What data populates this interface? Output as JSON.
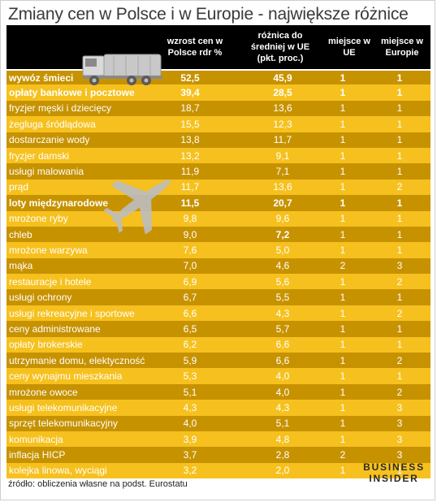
{
  "title": "Zmiany cen w Polsce i w Europie - największe różnice",
  "headers": {
    "growth": [
      "wzrost cen w",
      "Polsce rdr %"
    ],
    "diff": [
      "różnica do",
      "średniej w UE",
      "(pkt. proc.)"
    ],
    "eu": [
      "miejsce w",
      "UE"
    ],
    "europe": [
      "miejsce w",
      "Europie"
    ]
  },
  "rows": [
    {
      "name": "wywóz śmieci",
      "growth": "52,5",
      "diff": "45,9",
      "eu": "1",
      "europe": "1"
    },
    {
      "name": "opłaty bankowe i pocztowe",
      "growth": "39,4",
      "diff": "28,5",
      "eu": "1",
      "europe": "1"
    },
    {
      "name": "fryzjer męski i dziecięcy",
      "growth": "18,7",
      "diff": "13,6",
      "eu": "1",
      "europe": "1"
    },
    {
      "name": "żegluga śródlądowa",
      "growth": "15,5",
      "diff": "12,3",
      "eu": "1",
      "europe": "1"
    },
    {
      "name": "dostarczanie wody",
      "growth": "13,8",
      "diff": "11,7",
      "eu": "1",
      "europe": "1"
    },
    {
      "name": "fryzjer damski",
      "growth": "13,2",
      "diff": "9,1",
      "eu": "1",
      "europe": "1"
    },
    {
      "name": "usługi malowania",
      "growth": "11,9",
      "diff": "7,1",
      "eu": "1",
      "europe": "1"
    },
    {
      "name": "prąd",
      "growth": "11,7",
      "diff": "13,6",
      "eu": "1",
      "europe": "2"
    },
    {
      "name": "loty międzynarodowe",
      "growth": "11,5",
      "diff": "20,7",
      "eu": "1",
      "europe": "1"
    },
    {
      "name": "mrożone ryby",
      "growth": "9,8",
      "diff": "9,6",
      "eu": "1",
      "europe": "1"
    },
    {
      "name": "chleb",
      "growth": "9,0",
      "diff": "7,2",
      "eu": "1",
      "europe": "1"
    },
    {
      "name": "mrożone warzywa",
      "growth": "7,6",
      "diff": "5,0",
      "eu": "1",
      "europe": "1"
    },
    {
      "name": "mąka",
      "growth": "7,0",
      "diff": "4,6",
      "eu": "2",
      "europe": "3"
    },
    {
      "name": "restauracje i hotele",
      "growth": "6,9",
      "diff": "5,6",
      "eu": "1",
      "europe": "2"
    },
    {
      "name": "usługi ochrony",
      "growth": "6,7",
      "diff": "5,5",
      "eu": "1",
      "europe": "1"
    },
    {
      "name": "usługi rekreacyjne i sportowe",
      "growth": "6,6",
      "diff": "4,3",
      "eu": "1",
      "europe": "2"
    },
    {
      "name": "ceny administrowane",
      "growth": "6,5",
      "diff": "5,7",
      "eu": "1",
      "europe": "1"
    },
    {
      "name": "opłaty brokerskie",
      "growth": "6,2",
      "diff": "6,6",
      "eu": "1",
      "europe": "1"
    },
    {
      "name": "utrzymanie domu, elektyczność",
      "growth": "5,9",
      "diff": "6,6",
      "eu": "1",
      "europe": "2"
    },
    {
      "name": "ceny wynajmu mieszkania",
      "growth": "5,3",
      "diff": "4,0",
      "eu": "1",
      "europe": "1"
    },
    {
      "name": "mrożone owoce",
      "growth": "5,1",
      "diff": "4,0",
      "eu": "1",
      "europe": "2"
    },
    {
      "name": "usługi telekomunikacyjne",
      "growth": "4,3",
      "diff": "4,3",
      "eu": "1",
      "europe": "3"
    },
    {
      "name": "sprzęt telekomunikacyjny",
      "growth": "4,0",
      "diff": "5,1",
      "eu": "1",
      "europe": "3"
    },
    {
      "name": "komunikacja",
      "growth": "3,9",
      "diff": "4,8",
      "eu": "1",
      "europe": "3"
    },
    {
      "name": "inflacja HICP",
      "growth": "3,7",
      "diff": "2,8",
      "eu": "2",
      "europe": "3"
    },
    {
      "name": "kolejka linowa, wyciągi",
      "growth": "3,2",
      "diff": "2,0",
      "eu": "1",
      "europe": "1"
    }
  ],
  "emphasis": {
    "bold_rows": [
      0,
      1,
      8
    ],
    "bold_diff_cells": [
      10
    ]
  },
  "source": "źródło: obliczenia własne na podst. Eurostatu",
  "logo": [
    "BUSINESS",
    "INSIDER"
  ],
  "colors": {
    "dark_row": "#c79200",
    "light_row": "#f6c11e",
    "header": "#000000"
  },
  "icons": [
    "garbage-truck-icon",
    "airplane-icon"
  ]
}
